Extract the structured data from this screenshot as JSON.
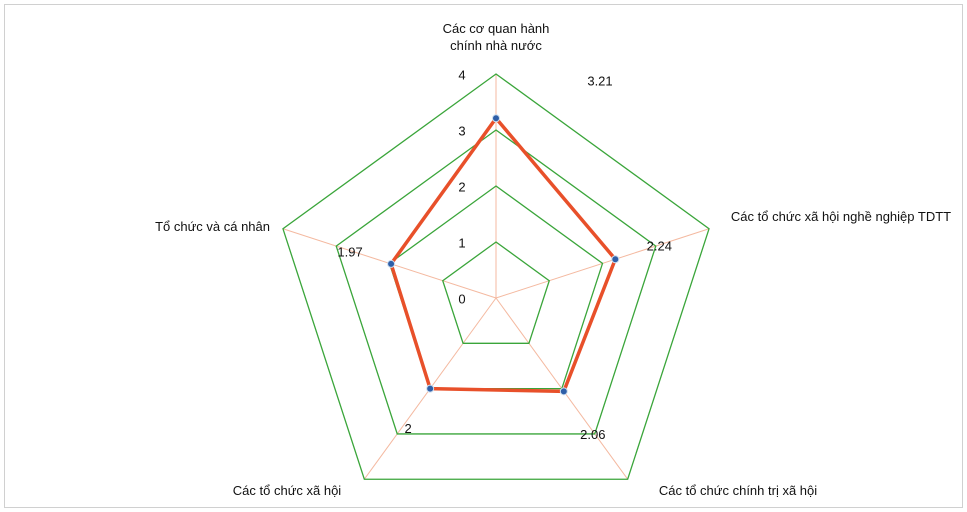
{
  "chart_data": {
    "type": "radar",
    "categories": [
      "Các cơ quan hành chính nhà nước",
      "Các tổ chức xã hội nghề nghiệp TDTT",
      "Các tổ chức chính trị xã hội",
      "Các tổ chức xã hội",
      "Tổ chức và cá nhân"
    ],
    "series": [
      {
        "color": "#e8502a",
        "marker_color": "#2f5fa8",
        "values": [
          3.21,
          2.24,
          2.06,
          2.0,
          1.97
        ]
      }
    ],
    "ylim": [
      0,
      4
    ],
    "yticks": [
      0,
      1,
      2,
      3,
      4
    ],
    "grid_color": "#3aa53a",
    "spoke_color": "#f4b9a0"
  }
}
